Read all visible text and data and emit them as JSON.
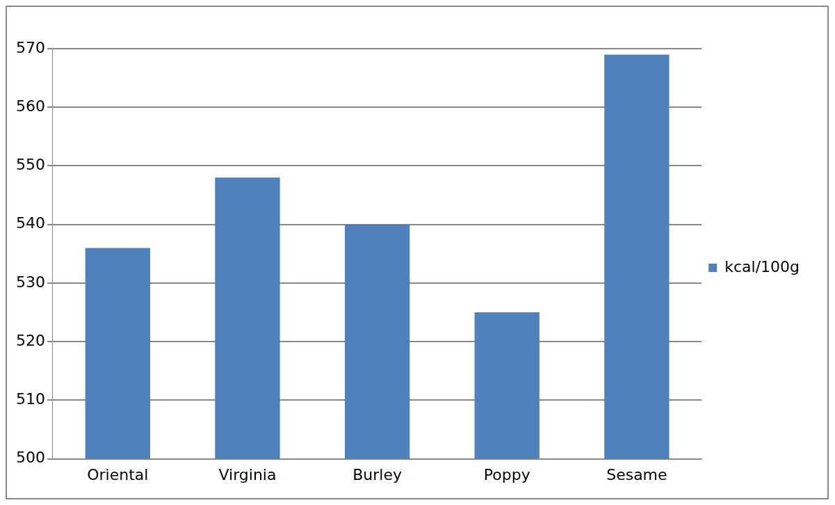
{
  "chart_data": {
    "type": "bar",
    "categories": [
      "Oriental",
      "Virginia",
      "Burley",
      "Poppy",
      "Sesame"
    ],
    "series": [
      {
        "name": "kcal/100g",
        "color": "#4f81bd",
        "values": [
          536,
          548,
          540,
          525,
          569
        ]
      }
    ],
    "ylim": [
      500,
      570
    ],
    "yticks": [
      500,
      510,
      520,
      530,
      540,
      550,
      560,
      570
    ],
    "grid": "y",
    "legend": "right"
  }
}
